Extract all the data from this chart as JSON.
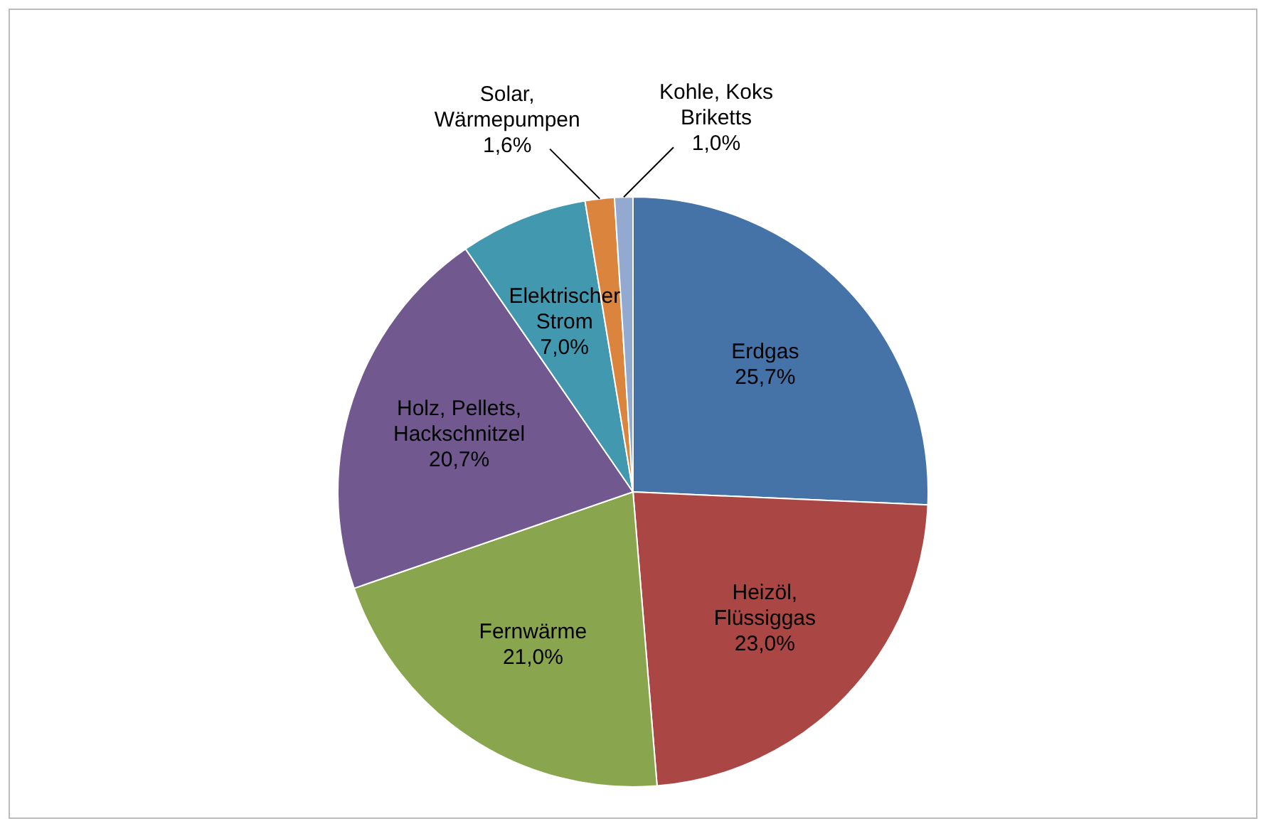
{
  "chart_data": {
    "type": "pie",
    "categories": [
      "Erdgas",
      "Heizöl, Flüssiggas",
      "Fernwärme",
      "Holz, Pellets, Hackschnitzel",
      "Elektrischer Strom",
      "Solar, Wärmepumpen",
      "Kohle, Koks Briketts"
    ],
    "values": [
      25.7,
      23.0,
      21.0,
      20.7,
      7.0,
      1.6,
      1.0
    ],
    "value_labels": [
      "25,7%",
      "23,0%",
      "21,0%",
      "20,7%",
      "7,0%",
      "1,6%",
      "1,0%"
    ],
    "colors": [
      "#4572a7",
      "#aa4643",
      "#89a54e",
      "#71588f",
      "#4198af",
      "#db843d",
      "#93a9cf"
    ],
    "legend": false
  }
}
